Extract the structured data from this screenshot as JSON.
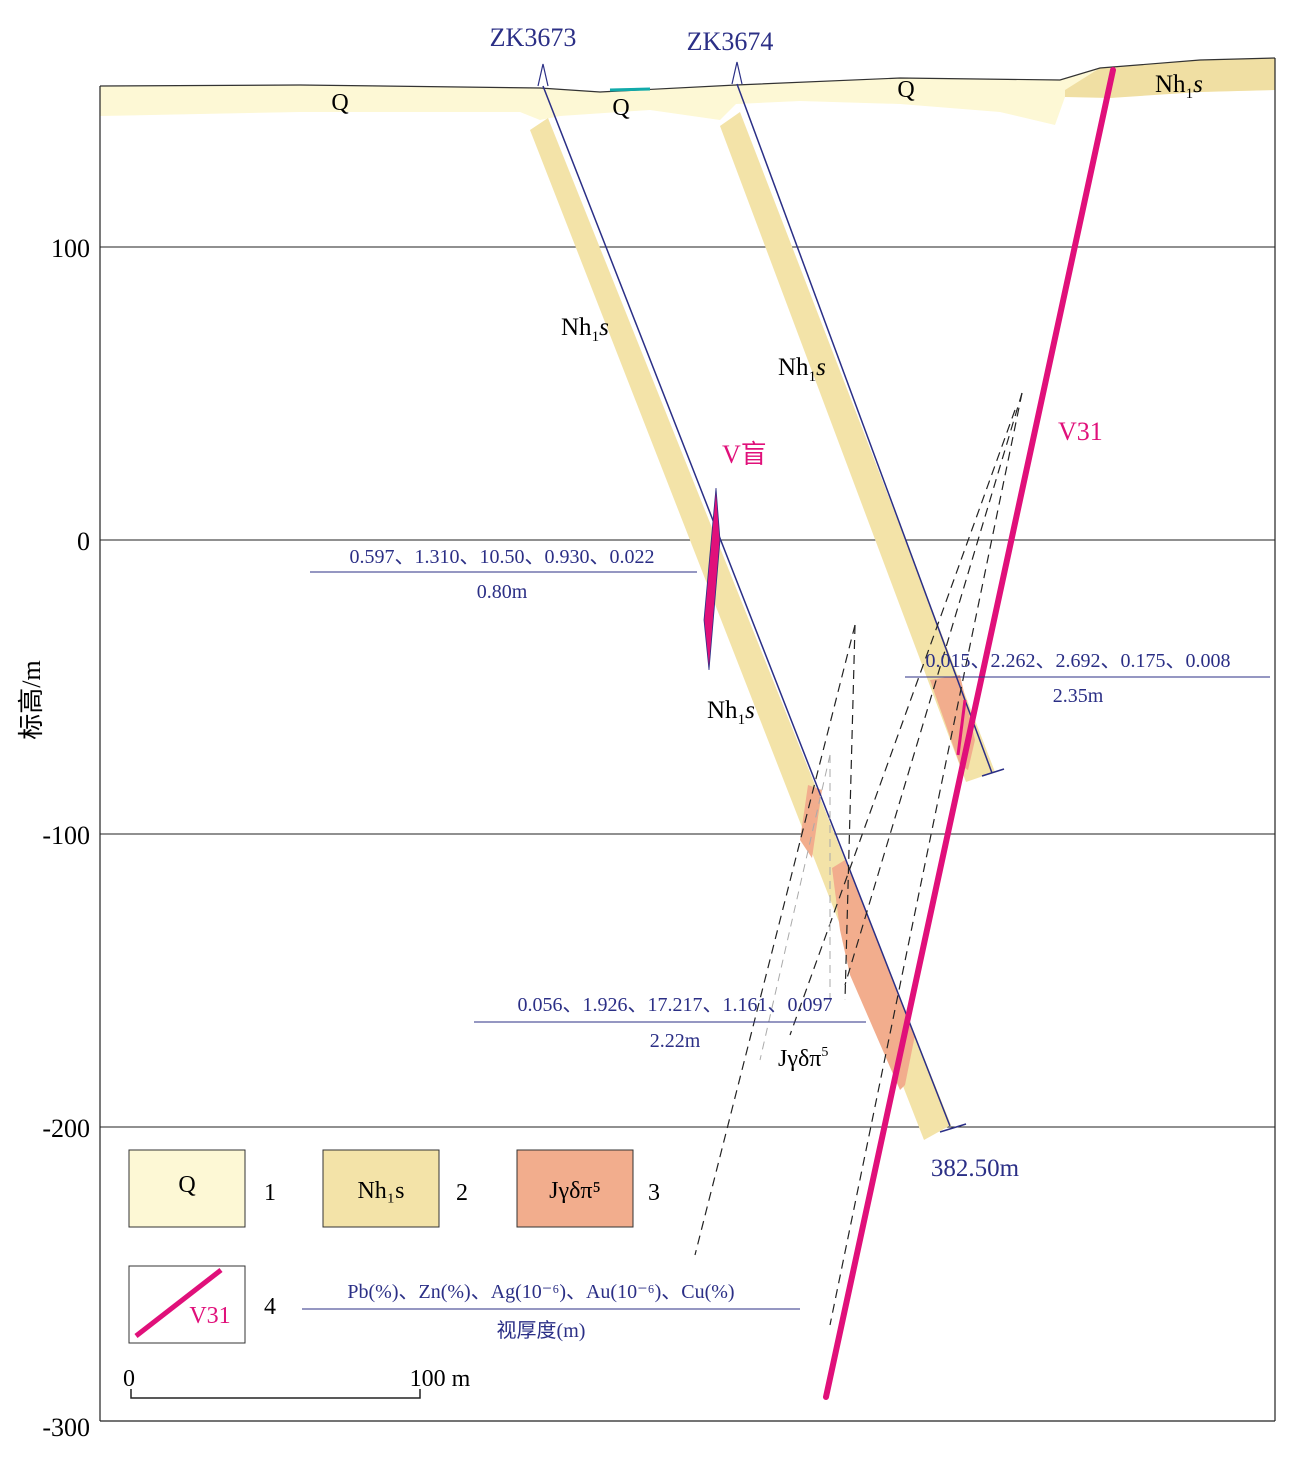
{
  "axis": {
    "ylabel": "标高/m",
    "ticks": [
      "100",
      "0",
      "-100",
      "-200",
      "-300"
    ]
  },
  "boreholes": [
    {
      "name": "ZK3673",
      "depth_label": "382.50m"
    },
    {
      "name": "ZK3674"
    }
  ],
  "strata": {
    "q_labels": [
      "Q",
      "Q",
      "Q"
    ],
    "nh_base": "Nh",
    "nh_sub": "1",
    "nh_ital": "s",
    "intrusion_base": "Jγδπ",
    "intrusion_sup": "5"
  },
  "veins": [
    {
      "name": "V盲",
      "color": "#e0107a"
    },
    {
      "name": "V31",
      "color": "#e0107a"
    }
  ],
  "assays": [
    {
      "grades": "0.597、1.310、10.50、0.930、0.022",
      "thickness": "0.80m"
    },
    {
      "grades": "0.015、2.262、2.692、0.175、0.008",
      "thickness": "2.35m"
    },
    {
      "grades": "0.056、1.926、17.217、1.161、0.097",
      "thickness": "2.22m"
    }
  ],
  "legend": {
    "items": [
      {
        "num": "1",
        "label": "Q",
        "color": "#fdf8d5"
      },
      {
        "num": "2",
        "label": "Nh₁s",
        "color": "#f3e3a8"
      },
      {
        "num": "3",
        "label": "Jγδπ⁵",
        "color": "#f2ad8d"
      },
      {
        "num": "4",
        "label": "V31",
        "color": "#e0107a"
      }
    ],
    "formula_top": "Pb(%)、Zn(%)、Ag(10⁻⁶)、Au(10⁻⁶)、Cu(%)",
    "formula_bottom": "视厚度(m)"
  },
  "scale": {
    "start": "0",
    "end": "100 m"
  }
}
